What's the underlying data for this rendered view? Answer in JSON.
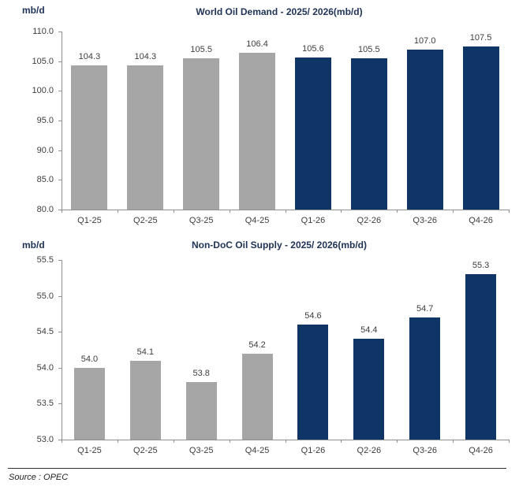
{
  "page": {
    "source_note": "Source : OPEC"
  },
  "colors": {
    "bar_2025_gray": "#a6a6a6",
    "bar_2026_navy": "#0e3566",
    "title_navy": "#203457",
    "label_gray": "#3d3d3d",
    "axis_gray": "#8f8f8f"
  },
  "chart_data": [
    {
      "type": "bar",
      "title": "World Oil Demand - 2025/ 2026(mb/d)",
      "unit_label": "mb/d",
      "categories": [
        "Q1-25",
        "Q2-25",
        "Q3-25",
        "Q4-25",
        "Q1-26",
        "Q2-26",
        "Q3-26",
        "Q4-26"
      ],
      "values": [
        104.3,
        104.3,
        105.5,
        106.4,
        105.6,
        105.5,
        107.0,
        107.5
      ],
      "value_labels": [
        "104.3",
        "104.3",
        "105.5",
        "106.4",
        "105.6",
        "105.5",
        "107.0",
        "107.5"
      ],
      "bar_colors": [
        "bar_2025_gray",
        "bar_2025_gray",
        "bar_2025_gray",
        "bar_2025_gray",
        "bar_2026_navy",
        "bar_2026_navy",
        "bar_2026_navy",
        "bar_2026_navy"
      ],
      "ylim": [
        80.0,
        110.0
      ],
      "ytick_step": 5.0,
      "ytick_labels": [
        "110.0",
        "105.0",
        "100.0",
        "95.0",
        "90.0",
        "85.0",
        "80.0"
      ],
      "grid": false,
      "legend": "none"
    },
    {
      "type": "bar",
      "title": "Non-DoC Oil Supply - 2025/ 2026(mb/d)",
      "unit_label": "mb/d",
      "categories": [
        "Q1-25",
        "Q2-25",
        "Q3-25",
        "Q4-25",
        "Q1-26",
        "Q2-26",
        "Q3-26",
        "Q4-26"
      ],
      "values": [
        54.0,
        54.1,
        53.8,
        54.2,
        54.6,
        54.4,
        54.7,
        55.3
      ],
      "value_labels": [
        "54.0",
        "54.1",
        "53.8",
        "54.2",
        "54.6",
        "54.4",
        "54.7",
        "55.3"
      ],
      "bar_colors": [
        "bar_2025_gray",
        "bar_2025_gray",
        "bar_2025_gray",
        "bar_2025_gray",
        "bar_2026_navy",
        "bar_2026_navy",
        "bar_2026_navy",
        "bar_2026_navy"
      ],
      "ylim": [
        53.0,
        55.5
      ],
      "ytick_step": 0.5,
      "ytick_labels": [
        "55.5",
        "55.0",
        "54.5",
        "54.0",
        "53.5",
        "53.0"
      ],
      "grid": false,
      "legend": "none"
    }
  ]
}
